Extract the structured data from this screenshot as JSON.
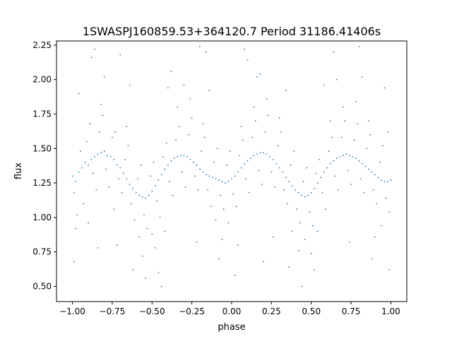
{
  "chart_data": {
    "type": "scatter",
    "title": "1SWASPJ160859.53+364120.7 Period 31186.41406s",
    "xlabel": "phase",
    "ylabel": "flux",
    "xlim": [
      -1.1,
      1.1
    ],
    "ylim": [
      0.39,
      2.28
    ],
    "xticks": [
      {
        "value": -1.0,
        "label": "−1.00"
      },
      {
        "value": -0.75,
        "label": "−0.75"
      },
      {
        "value": -0.5,
        "label": "−0.50"
      },
      {
        "value": -0.25,
        "label": "−0.25"
      },
      {
        "value": 0.0,
        "label": "0.00"
      },
      {
        "value": 0.25,
        "label": "0.25"
      },
      {
        "value": 0.5,
        "label": "0.50"
      },
      {
        "value": 0.75,
        "label": "0.75"
      },
      {
        "value": 1.0,
        "label": "1.00"
      }
    ],
    "yticks": [
      {
        "value": 0.5,
        "label": "0.50"
      },
      {
        "value": 0.75,
        "label": "0.75"
      },
      {
        "value": 1.0,
        "label": "1.00"
      },
      {
        "value": 1.25,
        "label": "1.25"
      },
      {
        "value": 1.5,
        "label": "1.50"
      },
      {
        "value": 1.75,
        "label": "1.75"
      },
      {
        "value": 2.0,
        "label": "2.00"
      },
      {
        "value": 2.25,
        "label": "2.25"
      }
    ],
    "grid": false,
    "marker_color": "#1f77b4",
    "series": [
      {
        "name": "",
        "points": [
          [
            -1.0,
            1.3
          ],
          [
            -0.98,
            1.26
          ],
          [
            -0.96,
            1.33
          ],
          [
            -0.94,
            1.36
          ],
          [
            -0.92,
            1.4
          ],
          [
            -0.9,
            1.38
          ],
          [
            -0.88,
            1.42
          ],
          [
            -0.86,
            1.44
          ],
          [
            -0.84,
            1.46
          ],
          [
            -0.82,
            1.47
          ],
          [
            -0.8,
            1.48
          ],
          [
            -0.78,
            1.45
          ],
          [
            -0.76,
            1.44
          ],
          [
            -0.74,
            1.42
          ],
          [
            -0.72,
            1.38
          ],
          [
            -0.7,
            1.36
          ],
          [
            -0.68,
            1.32
          ],
          [
            -0.66,
            1.28
          ],
          [
            -0.64,
            1.24
          ],
          [
            -0.62,
            1.21
          ],
          [
            -0.6,
            1.18
          ],
          [
            -0.58,
            1.16
          ],
          [
            -0.56,
            1.15
          ],
          [
            -0.54,
            1.14
          ],
          [
            -0.52,
            1.16
          ],
          [
            -0.5,
            1.19
          ],
          [
            -0.48,
            1.23
          ],
          [
            -0.46,
            1.27
          ],
          [
            -0.44,
            1.31
          ],
          [
            -0.42,
            1.35
          ],
          [
            -0.4,
            1.38
          ],
          [
            -0.38,
            1.41
          ],
          [
            -0.36,
            1.43
          ],
          [
            -0.34,
            1.44
          ],
          [
            -0.32,
            1.45
          ],
          [
            -0.3,
            1.45
          ],
          [
            -0.28,
            1.44
          ],
          [
            -0.26,
            1.42
          ],
          [
            -0.24,
            1.4
          ],
          [
            -0.22,
            1.38
          ],
          [
            -0.2,
            1.35
          ],
          [
            -0.18,
            1.33
          ],
          [
            -0.16,
            1.31
          ],
          [
            -0.14,
            1.3
          ],
          [
            -0.12,
            1.29
          ],
          [
            -0.1,
            1.28
          ],
          [
            -0.08,
            1.27
          ],
          [
            -0.06,
            1.26
          ],
          [
            -0.04,
            1.25
          ],
          [
            -0.02,
            1.26
          ],
          [
            0.0,
            1.28
          ],
          [
            0.02,
            1.3
          ],
          [
            0.04,
            1.33
          ],
          [
            0.06,
            1.36
          ],
          [
            0.08,
            1.39
          ],
          [
            0.1,
            1.41
          ],
          [
            0.12,
            1.43
          ],
          [
            0.14,
            1.45
          ],
          [
            0.16,
            1.46
          ],
          [
            0.18,
            1.47
          ],
          [
            0.2,
            1.47
          ],
          [
            0.22,
            1.46
          ],
          [
            0.24,
            1.44
          ],
          [
            0.26,
            1.42
          ],
          [
            0.28,
            1.39
          ],
          [
            0.3,
            1.36
          ],
          [
            0.32,
            1.33
          ],
          [
            0.34,
            1.29
          ],
          [
            0.36,
            1.26
          ],
          [
            0.38,
            1.23
          ],
          [
            0.4,
            1.2
          ],
          [
            0.42,
            1.18
          ],
          [
            0.44,
            1.16
          ],
          [
            0.46,
            1.15
          ],
          [
            0.48,
            1.16
          ],
          [
            0.5,
            1.18
          ],
          [
            0.52,
            1.21
          ],
          [
            0.54,
            1.25
          ],
          [
            0.56,
            1.29
          ],
          [
            0.58,
            1.33
          ],
          [
            0.6,
            1.36
          ],
          [
            0.62,
            1.39
          ],
          [
            0.64,
            1.41
          ],
          [
            0.66,
            1.43
          ],
          [
            0.68,
            1.44
          ],
          [
            0.7,
            1.45
          ],
          [
            0.72,
            1.46
          ],
          [
            0.74,
            1.45
          ],
          [
            0.76,
            1.44
          ],
          [
            0.78,
            1.43
          ],
          [
            0.8,
            1.41
          ],
          [
            0.82,
            1.39
          ],
          [
            0.84,
            1.37
          ],
          [
            0.86,
            1.35
          ],
          [
            0.88,
            1.33
          ],
          [
            0.9,
            1.31
          ],
          [
            0.92,
            1.29
          ],
          [
            0.94,
            1.27
          ],
          [
            0.96,
            1.26
          ],
          [
            0.98,
            1.26
          ],
          [
            1.0,
            1.27
          ],
          [
            -0.99,
            1.18
          ],
          [
            -0.95,
            1.48
          ],
          [
            -0.91,
            1.55
          ],
          [
            -0.87,
            1.32
          ],
          [
            -0.83,
            1.62
          ],
          [
            -0.79,
            1.35
          ],
          [
            -0.75,
            1.58
          ],
          [
            -0.71,
            1.28
          ],
          [
            -0.67,
            1.42
          ],
          [
            -0.63,
            1.1
          ],
          [
            -0.59,
            1.28
          ],
          [
            -0.55,
            1.02
          ],
          [
            -0.51,
            1.3
          ],
          [
            -0.47,
            1.12
          ],
          [
            -0.43,
            1.44
          ],
          [
            -0.39,
            1.26
          ],
          [
            -0.35,
            1.56
          ],
          [
            -0.31,
            1.33
          ],
          [
            -0.27,
            1.6
          ],
          [
            -0.23,
            1.3
          ],
          [
            -0.19,
            1.48
          ],
          [
            -0.15,
            1.2
          ],
          [
            -0.11,
            1.4
          ],
          [
            -0.07,
            1.16
          ],
          [
            -0.03,
            1.38
          ],
          [
            0.01,
            1.17
          ],
          [
            0.05,
            1.45
          ],
          [
            0.09,
            1.28
          ],
          [
            0.13,
            1.58
          ],
          [
            0.17,
            1.34
          ],
          [
            0.21,
            1.62
          ],
          [
            0.25,
            1.33
          ],
          [
            0.29,
            1.52
          ],
          [
            0.33,
            1.2
          ],
          [
            0.37,
            1.38
          ],
          [
            0.41,
            1.06
          ],
          [
            0.45,
            1.26
          ],
          [
            0.49,
            1.04
          ],
          [
            0.53,
            1.32
          ],
          [
            0.57,
            1.18
          ],
          [
            0.61,
            1.48
          ],
          [
            0.65,
            1.3
          ],
          [
            0.69,
            1.58
          ],
          [
            0.73,
            1.34
          ],
          [
            0.77,
            1.56
          ],
          [
            0.81,
            1.28
          ],
          [
            0.85,
            1.5
          ],
          [
            0.89,
            1.2
          ],
          [
            0.93,
            1.4
          ],
          [
            0.97,
            1.14
          ],
          [
            -0.97,
            1.02
          ],
          [
            -0.93,
            1.1
          ],
          [
            -0.89,
            1.68
          ],
          [
            -0.85,
            1.2
          ],
          [
            -0.81,
            1.74
          ],
          [
            -0.77,
            1.22
          ],
          [
            -0.73,
            1.62
          ],
          [
            -0.69,
            1.18
          ],
          [
            -0.65,
            1.52
          ],
          [
            -0.61,
            0.98
          ],
          [
            -0.57,
            1.38
          ],
          [
            -0.53,
            0.92
          ],
          [
            -0.49,
            1.4
          ],
          [
            -0.45,
            1.0
          ],
          [
            -0.41,
            1.54
          ],
          [
            -0.37,
            1.16
          ],
          [
            -0.33,
            1.66
          ],
          [
            -0.29,
            1.22
          ],
          [
            -0.25,
            1.72
          ],
          [
            -0.21,
            1.2
          ],
          [
            -0.17,
            1.58
          ],
          [
            -0.13,
            1.08
          ],
          [
            -0.09,
            1.5
          ],
          [
            -0.05,
            1.06
          ],
          [
            -0.01,
            1.48
          ],
          [
            0.03,
            1.08
          ],
          [
            0.07,
            1.56
          ],
          [
            0.11,
            1.18
          ],
          [
            0.15,
            1.7
          ],
          [
            0.19,
            1.24
          ],
          [
            0.23,
            1.74
          ],
          [
            0.27,
            1.22
          ],
          [
            0.31,
            1.62
          ],
          [
            0.35,
            1.1
          ],
          [
            0.39,
            1.48
          ],
          [
            0.43,
            0.96
          ],
          [
            0.47,
            1.36
          ],
          [
            0.51,
            0.94
          ],
          [
            0.55,
            1.42
          ],
          [
            0.59,
            1.06
          ],
          [
            0.63,
            1.58
          ],
          [
            0.67,
            1.2
          ],
          [
            0.71,
            1.7
          ],
          [
            0.75,
            1.24
          ],
          [
            0.79,
            1.68
          ],
          [
            0.83,
            1.18
          ],
          [
            0.87,
            1.6
          ],
          [
            0.91,
            1.1
          ],
          [
            0.95,
            1.52
          ],
          [
            0.99,
            1.04
          ],
          [
            -0.98,
            0.92
          ],
          [
            -0.9,
            0.96
          ],
          [
            -0.82,
            1.82
          ],
          [
            -0.74,
            1.06
          ],
          [
            -0.66,
            1.66
          ],
          [
            -0.58,
            0.86
          ],
          [
            -0.5,
            0.88
          ],
          [
            -0.42,
            0.9
          ],
          [
            -0.34,
            1.8
          ],
          [
            -0.26,
            1.86
          ],
          [
            -0.18,
            1.68
          ],
          [
            -0.1,
            0.98
          ],
          [
            -0.02,
            0.96
          ],
          [
            0.06,
            1.66
          ],
          [
            0.14,
            1.8
          ],
          [
            0.22,
            1.86
          ],
          [
            0.3,
            1.72
          ],
          [
            0.38,
            0.9
          ],
          [
            0.46,
            0.84
          ],
          [
            0.54,
            0.9
          ],
          [
            0.62,
            1.7
          ],
          [
            0.7,
            1.8
          ],
          [
            0.78,
            1.84
          ],
          [
            0.86,
            1.7
          ],
          [
            0.94,
            0.94
          ],
          [
            0.98,
            1.62
          ],
          [
            -0.96,
            1.9
          ],
          [
            -0.88,
            2.16
          ],
          [
            -0.84,
            0.78
          ],
          [
            -0.8,
            2.02
          ],
          [
            -0.72,
            0.8
          ],
          [
            -0.64,
            1.96
          ],
          [
            -0.56,
            0.72
          ],
          [
            -0.48,
            0.78
          ],
          [
            -0.4,
            1.94
          ],
          [
            -0.3,
            1.96
          ],
          [
            -0.22,
            0.82
          ],
          [
            -0.14,
            1.92
          ],
          [
            -0.06,
            0.84
          ],
          [
            0.04,
            0.8
          ],
          [
            0.1,
            2.14
          ],
          [
            0.18,
            2.04
          ],
          [
            0.26,
            0.86
          ],
          [
            0.34,
            1.92
          ],
          [
            0.42,
            0.76
          ],
          [
            0.5,
            0.74
          ],
          [
            0.58,
            1.96
          ],
          [
            0.66,
            2.0
          ],
          [
            0.74,
            0.82
          ],
          [
            0.82,
            2.02
          ],
          [
            0.9,
            0.86
          ],
          [
            0.96,
            1.94
          ],
          [
            -0.99,
            0.68
          ],
          [
            -0.86,
            2.22
          ],
          [
            -0.7,
            2.18
          ],
          [
            -0.62,
            0.62
          ],
          [
            -0.54,
            0.56
          ],
          [
            -0.46,
            0.6
          ],
          [
            -0.38,
            2.06
          ],
          [
            -0.2,
            2.24
          ],
          [
            -0.08,
            0.7
          ],
          [
            0.02,
            0.58
          ],
          [
            0.08,
            2.22
          ],
          [
            0.16,
            2.02
          ],
          [
            0.36,
            0.64
          ],
          [
            0.44,
            0.5
          ],
          [
            0.52,
            0.62
          ],
          [
            0.64,
            2.2
          ],
          [
            0.8,
            2.24
          ],
          [
            0.88,
            0.7
          ],
          [
            0.99,
            0.62
          ],
          [
            -0.44,
            0.5
          ],
          [
            0.2,
            0.68
          ],
          [
            -0.16,
            2.2
          ]
        ]
      }
    ]
  }
}
